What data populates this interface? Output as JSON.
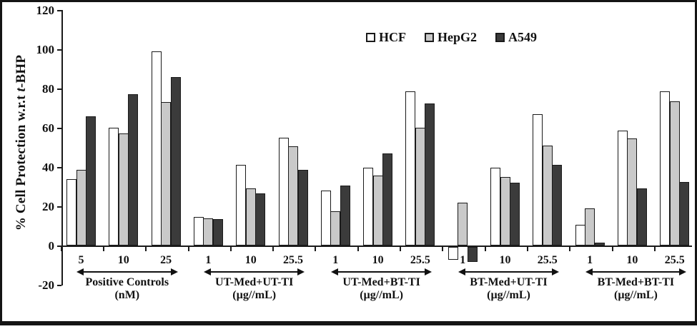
{
  "chart_data": {
    "type": "bar",
    "title": "",
    "ylabel_prefix": "% Cell Protection w.r.t ",
    "ylabel_italic": "t",
    "ylabel_suffix": "-BHP",
    "ylim": [
      -20,
      120
    ],
    "yticks": [
      120,
      100,
      80,
      60,
      40,
      20,
      0,
      -20
    ],
    "grid": false,
    "legend_position": "top-center",
    "axis_color": "#1a1a1a",
    "series": [
      {
        "name": "HCF",
        "color": "#ffffff"
      },
      {
        "name": "HepG2",
        "color": "#c9c9c9"
      },
      {
        "name": "A549",
        "color": "#3b3b3b"
      }
    ],
    "groups": [
      {
        "label": "Positive Controls",
        "unit": "(nM)",
        "concentrations": [
          "5",
          "10",
          "25"
        ],
        "values": [
          [
            34,
            38.5,
            66
          ],
          [
            60,
            57,
            77
          ],
          [
            99,
            73,
            86
          ]
        ]
      },
      {
        "label": "UT-Med+UT-TI",
        "unit": "(µg//mL)",
        "concentrations": [
          "1",
          "10",
          "25.5"
        ],
        "values": [
          [
            14.5,
            14,
            13.5
          ],
          [
            41,
            29,
            26.5
          ],
          [
            55,
            50.5,
            38.5
          ]
        ]
      },
      {
        "label": "UT-Med+BT-TI",
        "unit": "(µg//mL)",
        "concentrations": [
          "1",
          "10",
          "25.5"
        ],
        "values": [
          [
            28,
            17.5,
            30.5
          ],
          [
            39.5,
            35.5,
            47
          ],
          [
            78.5,
            60,
            72.5
          ]
        ]
      },
      {
        "label": "BT-Med+UT-TI",
        "unit": "(µg//mL)",
        "concentrations": [
          "1",
          "10",
          "25.5"
        ],
        "values": [
          [
            -6.5,
            22,
            -7.5
          ],
          [
            39.5,
            35,
            32
          ],
          [
            67,
            51,
            41
          ]
        ]
      },
      {
        "label": "BT-Med+BT-TI",
        "unit": "(µg//mL)",
        "concentrations": [
          "1",
          "10",
          "25.5"
        ],
        "values": [
          [
            10.5,
            19,
            1.5
          ],
          [
            58.5,
            54.5,
            29
          ],
          [
            78.5,
            73.5,
            32.5
          ]
        ]
      }
    ]
  }
}
